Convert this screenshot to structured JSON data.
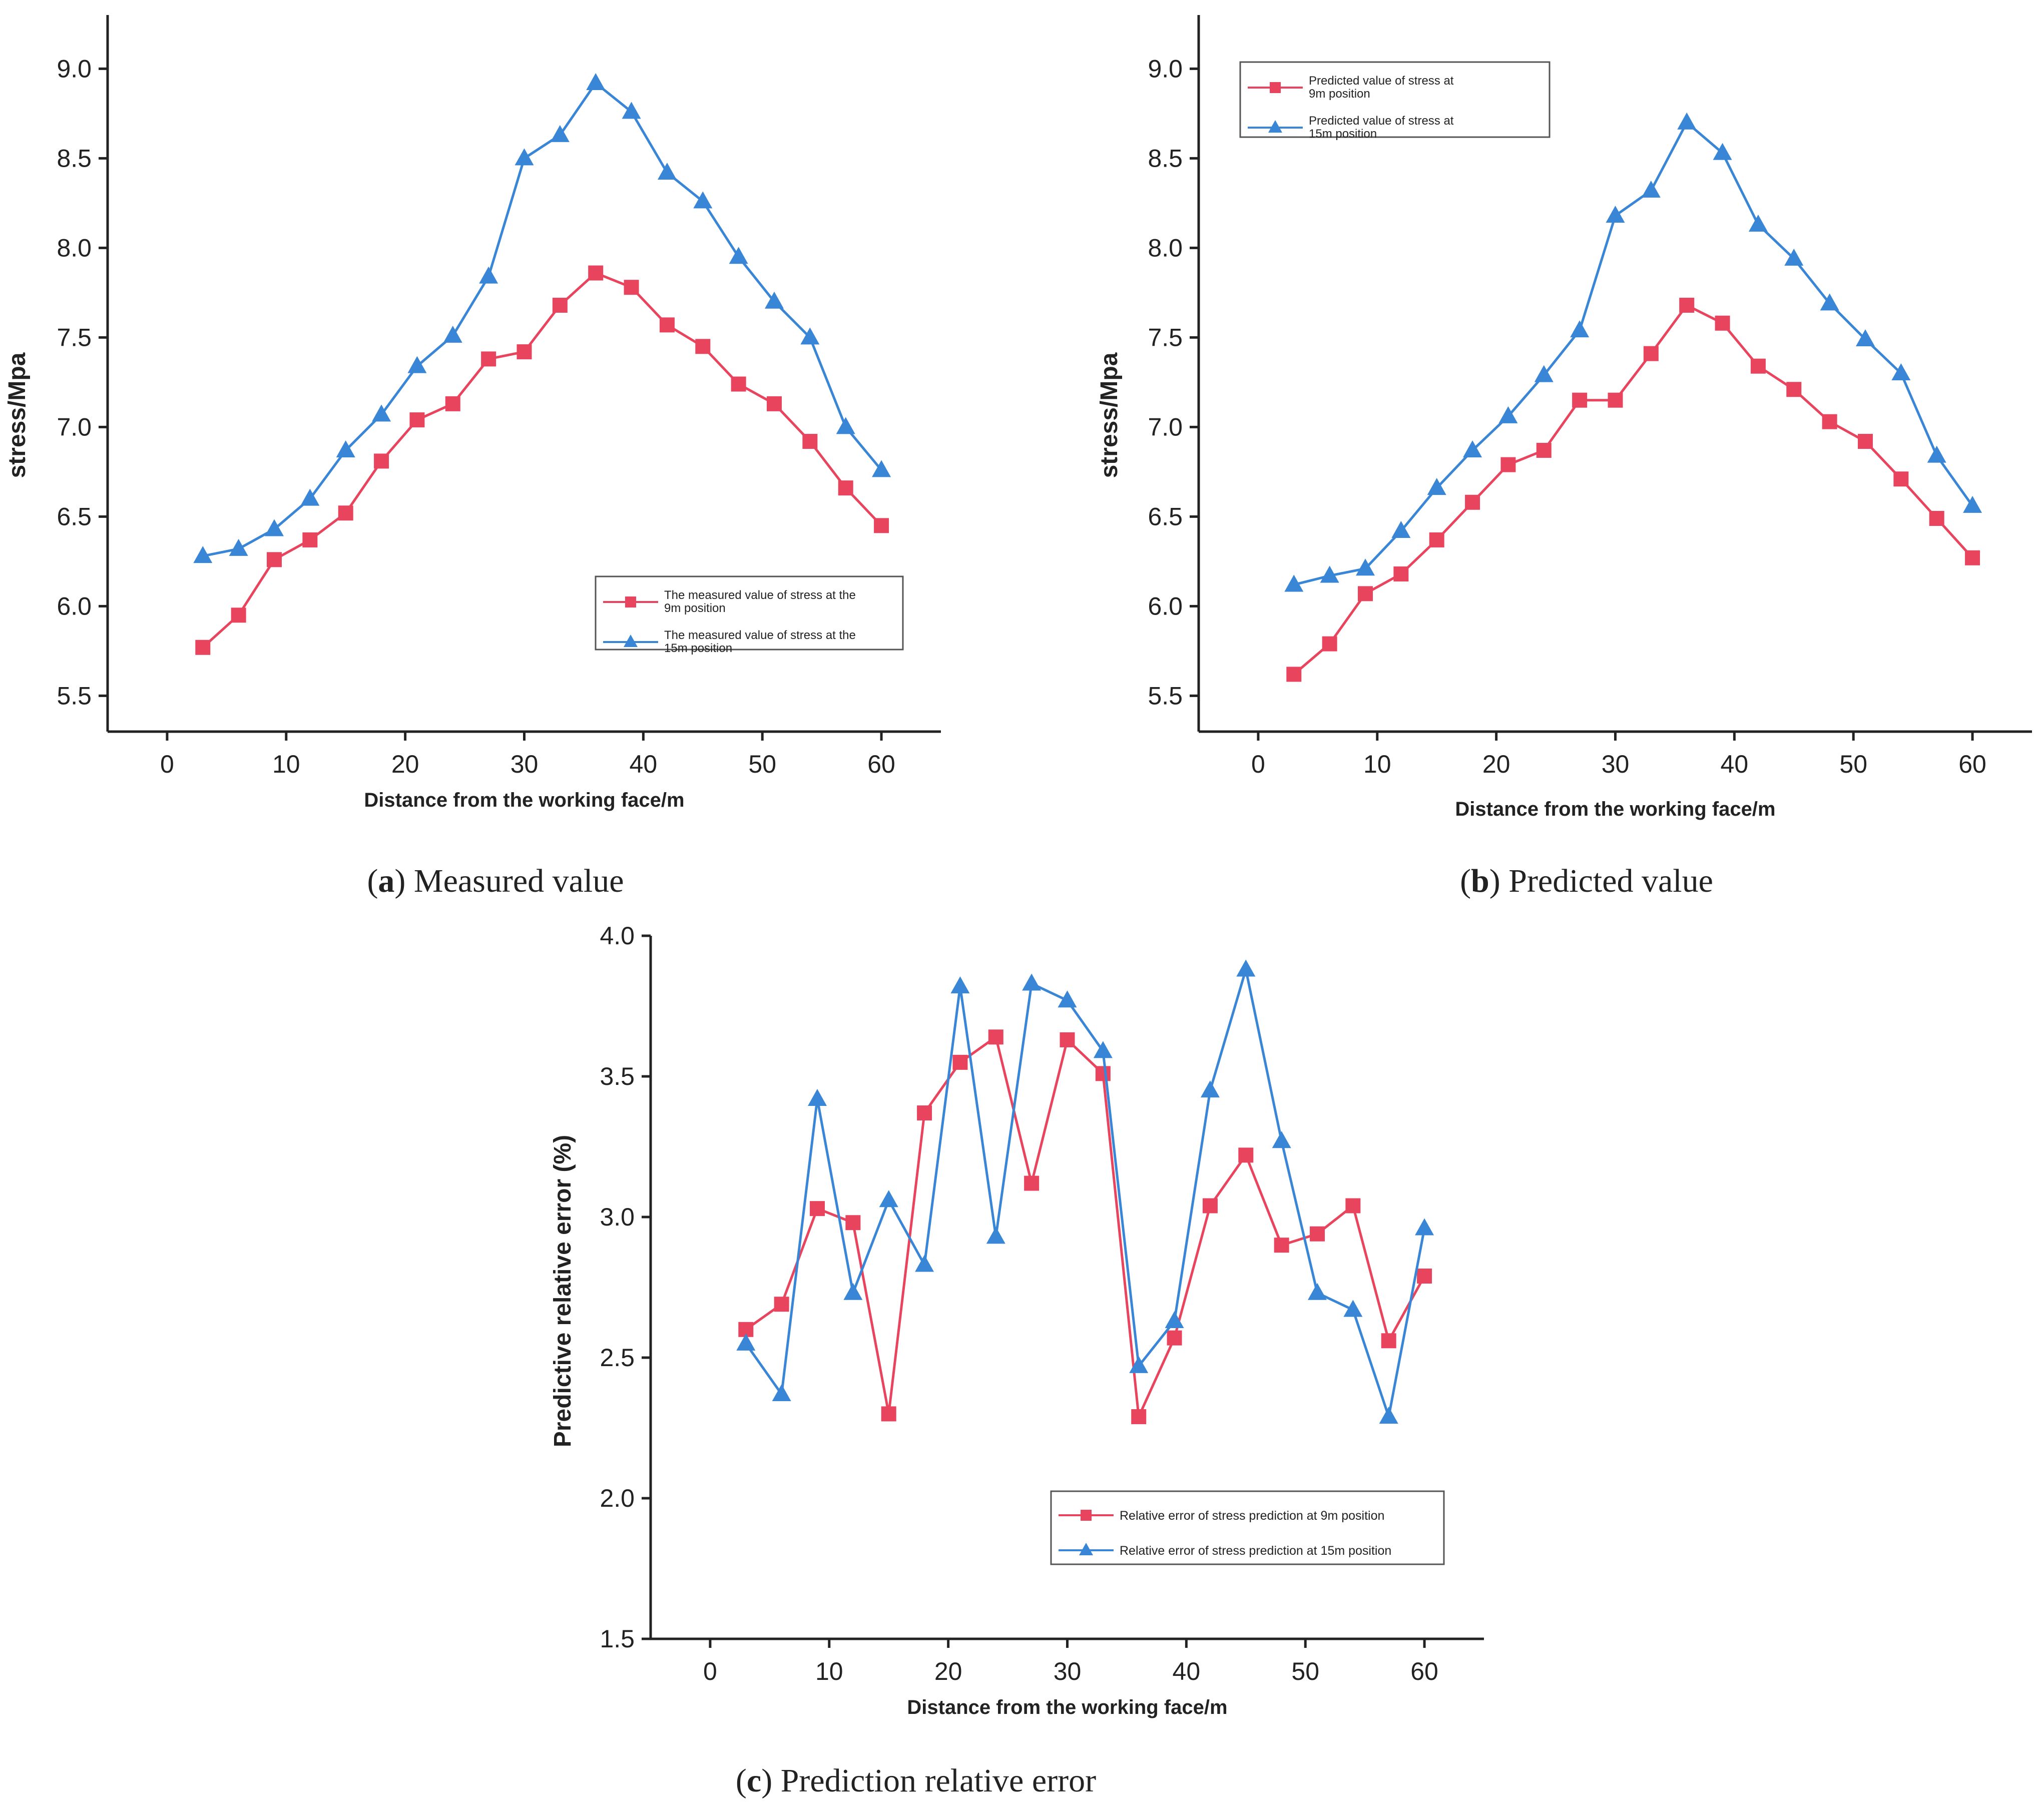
{
  "colors": {
    "series_9m": "#e9445e",
    "series_15m": "#3a86d6",
    "axis": "#222222"
  },
  "chart_data": [
    {
      "id": "a",
      "type": "line",
      "caption_letter": "a",
      "caption_text": " Measured value",
      "xlabel": "Distance from the working face/m",
      "ylabel": "stress/Mpa",
      "xlim": [
        -5,
        65
      ],
      "ylim": [
        5.3,
        9.3
      ],
      "xticks": [
        0,
        10,
        20,
        30,
        40,
        50,
        60
      ],
      "xtick_labels": [
        "0",
        "10",
        "20",
        "30",
        "40",
        "50",
        "60"
      ],
      "yticks": [
        5.5,
        6.0,
        6.5,
        7.0,
        7.5,
        8.0,
        8.5,
        9.0
      ],
      "ytick_labels": [
        "5.5",
        "6.0",
        "6.5",
        "7.0",
        "7.5",
        "8.0",
        "8.5",
        "9.0"
      ],
      "legend_position": "lower-right",
      "x": [
        3,
        6,
        9,
        12,
        15,
        18,
        21,
        24,
        27,
        30,
        33,
        36,
        39,
        42,
        45,
        48,
        51,
        54,
        57,
        60
      ],
      "series": [
        {
          "name": "The measured value of stress at the 9m position",
          "legend_lines": [
            "The measured value of stress at the",
            "9m position"
          ],
          "marker": "square",
          "values": [
            5.77,
            5.95,
            6.26,
            6.37,
            6.52,
            6.81,
            7.04,
            7.13,
            7.38,
            7.42,
            7.68,
            7.86,
            7.78,
            7.57,
            7.45,
            7.24,
            7.13,
            6.92,
            6.66,
            6.45
          ]
        },
        {
          "name": "The measured value of stress at the 15m position",
          "legend_lines": [
            "The measured value of stress at the",
            "15m position"
          ],
          "marker": "triangle",
          "values": [
            6.28,
            6.32,
            6.43,
            6.6,
            6.87,
            7.07,
            7.34,
            7.51,
            7.84,
            8.5,
            8.63,
            8.92,
            8.76,
            8.42,
            8.26,
            7.95,
            7.7,
            7.5,
            7.0,
            6.76
          ]
        }
      ]
    },
    {
      "id": "b",
      "type": "line",
      "caption_letter": "b",
      "caption_text": " Predicted value",
      "xlabel": "Distance from the working face/m",
      "ylabel": "stress/Mpa",
      "xlim": [
        -5,
        65
      ],
      "ylim": [
        5.3,
        9.3
      ],
      "xticks": [
        0,
        10,
        20,
        30,
        40,
        50,
        60
      ],
      "xtick_labels": [
        "0",
        "10",
        "20",
        "30",
        "40",
        "50",
        "60"
      ],
      "yticks": [
        5.5,
        6.0,
        6.5,
        7.0,
        7.5,
        8.0,
        8.5,
        9.0
      ],
      "ytick_labels": [
        "5.5",
        "6.0",
        "6.5",
        "7.0",
        "7.5",
        "8.0",
        "8.5",
        "9.0"
      ],
      "legend_position": "top-left",
      "x": [
        3,
        6,
        9,
        12,
        15,
        18,
        21,
        24,
        27,
        30,
        33,
        36,
        39,
        42,
        45,
        48,
        51,
        54,
        57,
        60
      ],
      "series": [
        {
          "name": "Predicted value of stress at 9m position",
          "legend_lines": [
            "Predicted value of stress at",
            "9m position"
          ],
          "marker": "square",
          "values": [
            5.62,
            5.79,
            6.07,
            6.18,
            6.37,
            6.58,
            6.79,
            6.87,
            7.15,
            7.15,
            7.41,
            7.68,
            7.58,
            7.34,
            7.21,
            7.03,
            6.92,
            6.71,
            6.49,
            6.27
          ]
        },
        {
          "name": "Predicted value of stress at 15m position",
          "legend_lines": [
            "Predicted value of stress at",
            "15m position"
          ],
          "marker": "triangle",
          "values": [
            6.12,
            6.17,
            6.21,
            6.42,
            6.66,
            6.87,
            7.06,
            7.29,
            7.54,
            8.18,
            8.32,
            8.7,
            8.53,
            8.13,
            7.94,
            7.69,
            7.49,
            7.3,
            6.84,
            6.56
          ]
        }
      ]
    },
    {
      "id": "c",
      "type": "line",
      "caption_letter": "c",
      "caption_text": " Prediction relative error",
      "xlabel": "Distance from the working face/m",
      "ylabel": "Predictive relative error  (%)",
      "xlim": [
        -5,
        65
      ],
      "ylim": [
        1.5,
        4.0
      ],
      "xticks": [
        0,
        10,
        20,
        30,
        40,
        50,
        60
      ],
      "xtick_labels": [
        "0",
        "10",
        "20",
        "30",
        "40",
        "50",
        "60"
      ],
      "yticks": [
        1.5,
        2.0,
        2.5,
        3.0,
        3.5,
        4.0
      ],
      "ytick_labels": [
        "1.5",
        "2.0",
        "2.5",
        "3.0",
        "3.5",
        "4.0"
      ],
      "legend_position": "lower-right",
      "x": [
        3,
        6,
        9,
        12,
        15,
        18,
        21,
        24,
        27,
        30,
        33,
        36,
        39,
        42,
        45,
        48,
        51,
        54,
        57,
        60
      ],
      "series": [
        {
          "name": "Relative error of stress prediction at 9m position",
          "legend_lines": [
            "Relative error of stress prediction at 9m position"
          ],
          "marker": "square",
          "values": [
            2.6,
            2.69,
            3.03,
            2.98,
            2.3,
            3.37,
            3.55,
            3.64,
            3.12,
            3.63,
            3.51,
            2.29,
            2.57,
            3.04,
            3.22,
            2.9,
            2.94,
            3.04,
            2.56,
            2.79
          ]
        },
        {
          "name": "Relative error of stress prediction at 15m position",
          "legend_lines": [
            "Relative error of stress prediction at 15m position"
          ],
          "marker": "triangle",
          "values": [
            2.55,
            2.37,
            3.42,
            2.73,
            3.06,
            2.83,
            3.82,
            2.93,
            3.83,
            3.77,
            3.59,
            2.47,
            2.63,
            3.45,
            3.88,
            3.27,
            2.73,
            2.67,
            2.29,
            2.96
          ]
        }
      ]
    }
  ]
}
